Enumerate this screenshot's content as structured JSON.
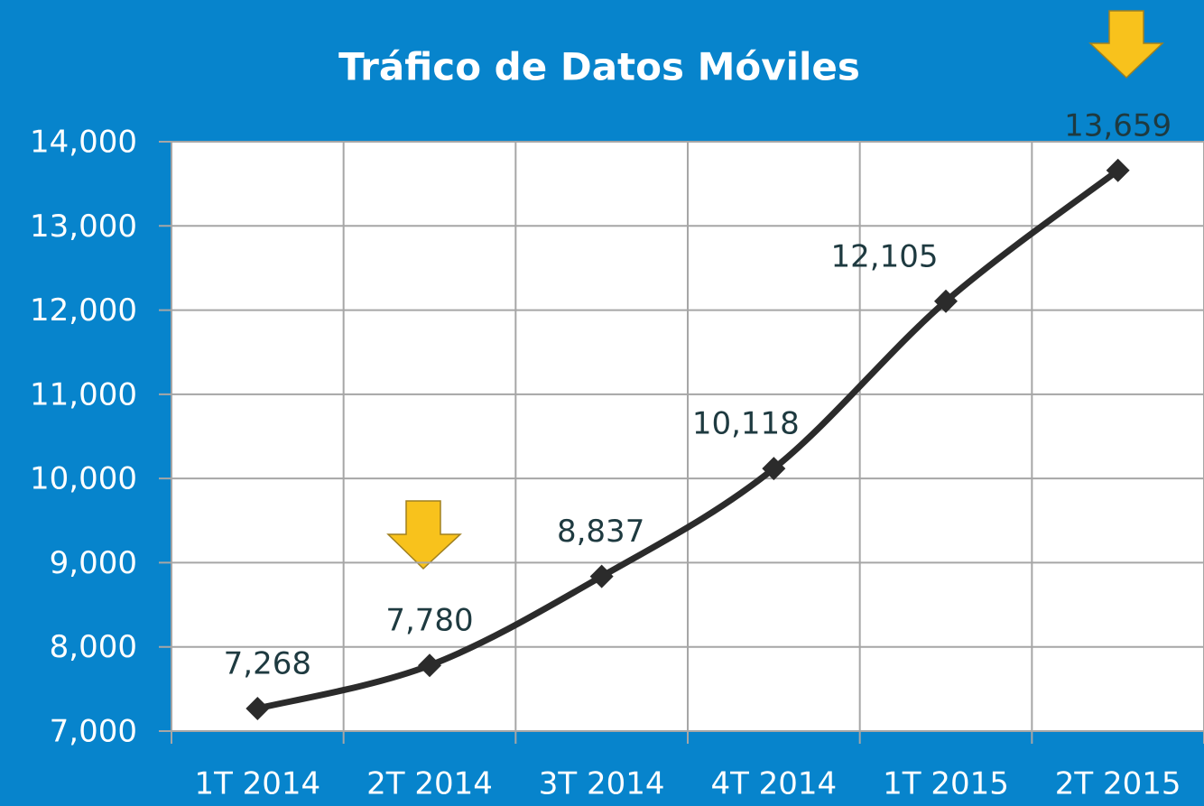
{
  "chart_data": {
    "type": "line",
    "title": "Tráfico de Datos Móviles",
    "categories": [
      "1T 2014",
      "2T 2014",
      "3T 2014",
      "4T 2014",
      "1T 2015",
      "2T 2015"
    ],
    "series": [
      {
        "name": "Tráfico",
        "color": "#2b2b2b",
        "values": [
          7268,
          7780,
          8837,
          10118,
          12105,
          13659
        ],
        "value_labels": [
          "7,268",
          "7,780",
          "8,837",
          "10,118",
          "12,105",
          "13,659"
        ]
      }
    ],
    "ylim": [
      7000,
      14000
    ],
    "yticks": [
      {
        "value": 7000,
        "label": "7,000"
      },
      {
        "value": 8000,
        "label": "8,000"
      },
      {
        "value": 9000,
        "label": "9,000"
      },
      {
        "value": 10000,
        "label": "10,000"
      },
      {
        "value": 11000,
        "label": "11,000"
      },
      {
        "value": 12000,
        "label": "12,000"
      },
      {
        "value": 13000,
        "label": "13,000"
      },
      {
        "value": 14000,
        "label": "14,000"
      }
    ],
    "grid": true
  }
}
